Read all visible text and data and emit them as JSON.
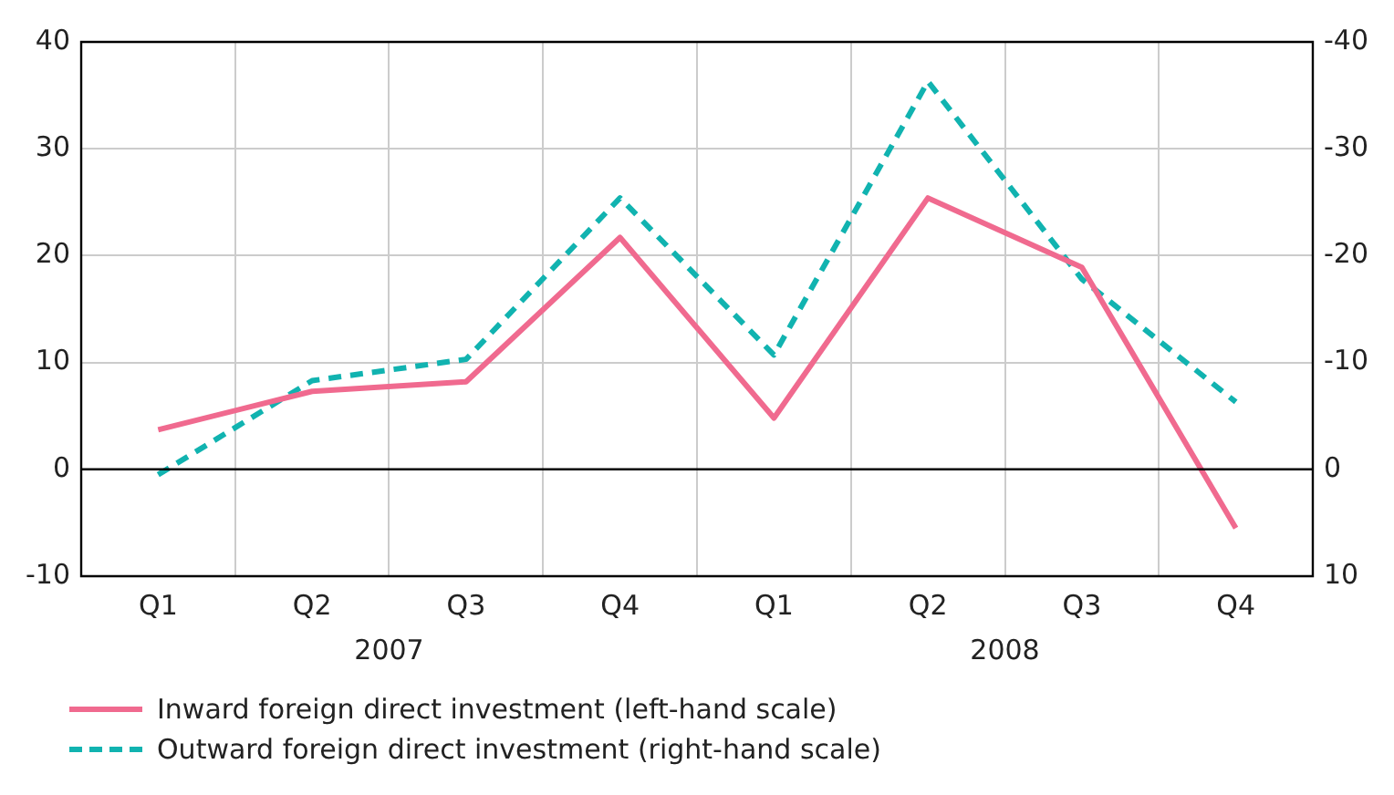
{
  "chart_data": {
    "type": "line",
    "categories": [
      "Q1",
      "Q2",
      "Q3",
      "Q4",
      "Q1",
      "Q2",
      "Q3",
      "Q4"
    ],
    "series": [
      {
        "name": "Inward foreign direct investment (left-hand scale)",
        "color": "#f06a8f",
        "line_style": "solid",
        "values": [
          3.7,
          7.3,
          8.2,
          21.7,
          4.8,
          25.4,
          18.9,
          -5.5
        ]
      },
      {
        "name": "Outward foreign direct investment (right-hand scale)",
        "color": "#11b3b0",
        "line_style": "dashed",
        "axis": "y2",
        "values": [
          0.5,
          -8.3,
          -10.3,
          -25.4,
          -10.7,
          -36.3,
          -17.8,
          -6.3
        ]
      }
    ],
    "ylim": [
      -10,
      40
    ],
    "yticks": [
      -10,
      0,
      10,
      20,
      30,
      40
    ],
    "y2lim": [
      10,
      -40
    ],
    "y2ticks": [
      10,
      0,
      -10,
      -20,
      -30,
      -40
    ],
    "ref_lines": [
      {
        "axis": "y",
        "value": 0,
        "color": "#000000"
      }
    ],
    "annotations": [
      "2007",
      "2008"
    ],
    "grid": true,
    "legend": "bottom",
    "marker": "none"
  }
}
